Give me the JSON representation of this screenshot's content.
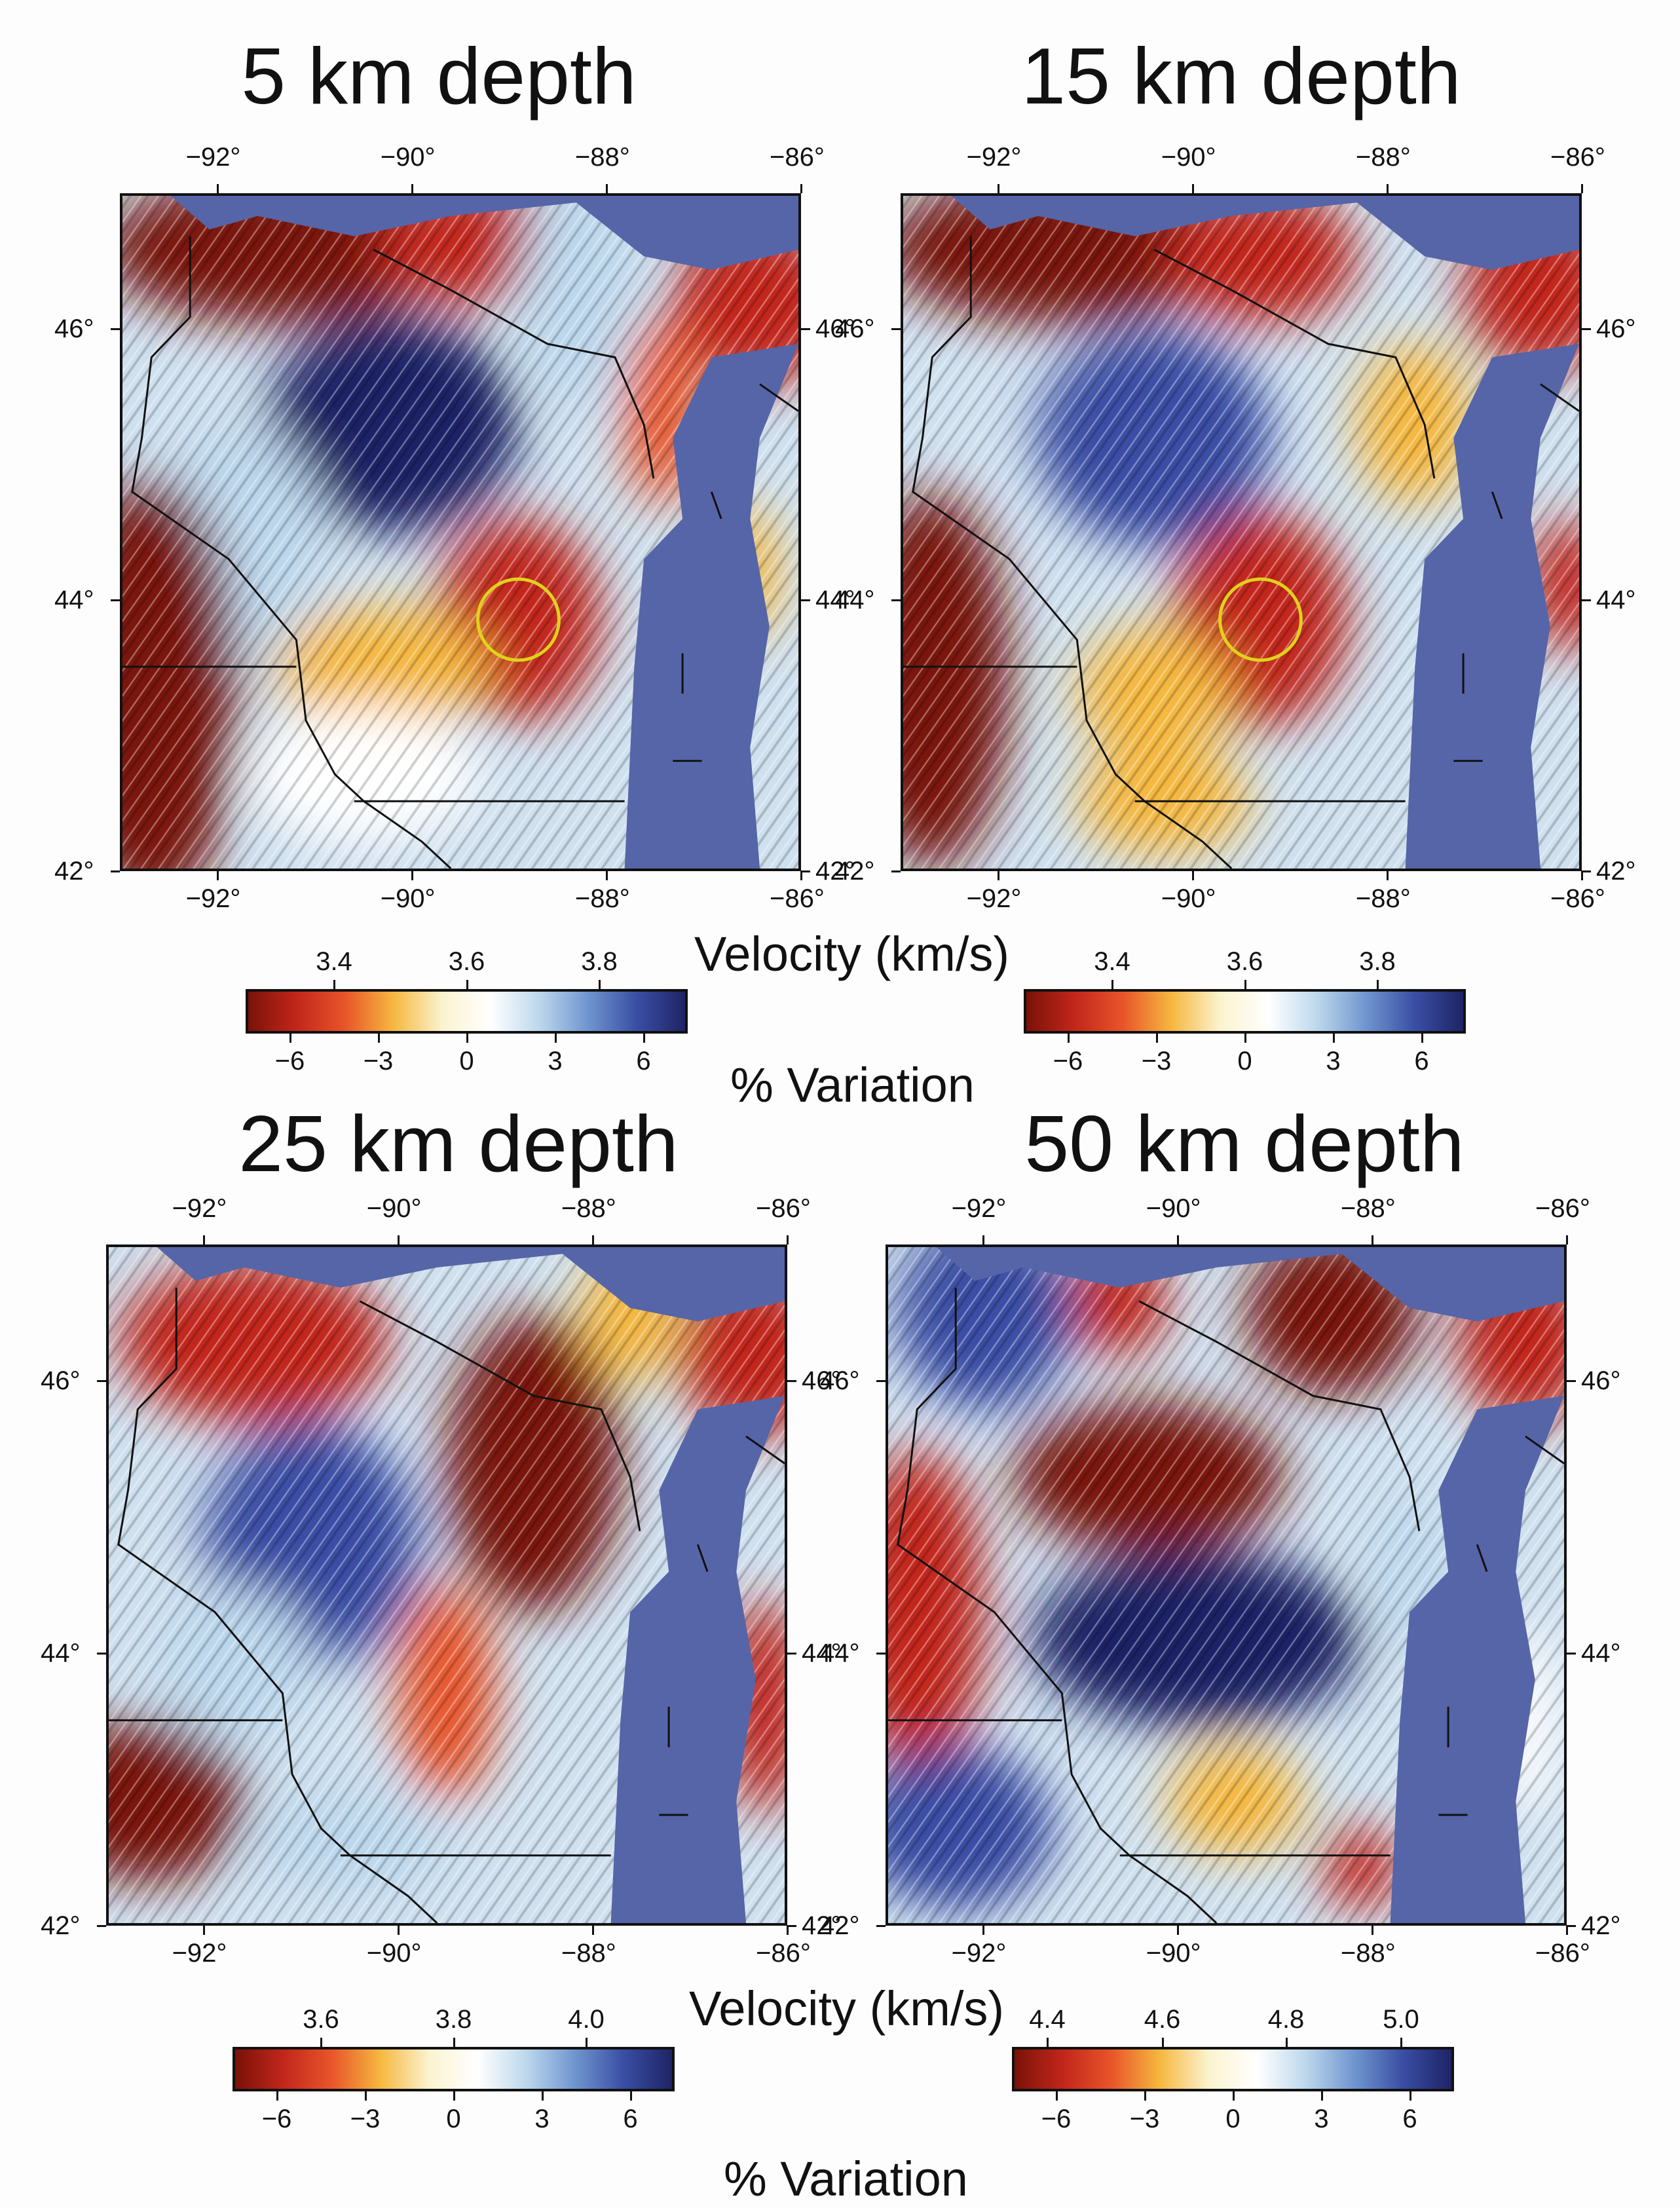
{
  "panels": [
    {
      "id": "p5",
      "title": "5 km depth",
      "hotspot": {
        "lon": -88.9,
        "lat": 43.85,
        "r": 0.42
      },
      "circle": true,
      "blobs": [
        {
          "lon": -91.4,
          "lat": 46.6,
          "rx": 1.8,
          "ry": 0.55,
          "v": -6.5
        },
        {
          "lon": -89.4,
          "lat": 46.65,
          "rx": 1.0,
          "ry": 0.45,
          "v": -5
        },
        {
          "lon": -88.3,
          "lat": 46.3,
          "rx": 0.6,
          "ry": 0.9,
          "v": 3
        },
        {
          "lon": -86.4,
          "lat": 46.2,
          "rx": 0.9,
          "ry": 0.6,
          "v": -6
        },
        {
          "lon": -87.4,
          "lat": 45.4,
          "rx": 0.4,
          "ry": 0.7,
          "v": -4
        },
        {
          "lon": -90.2,
          "lat": 45.3,
          "rx": 1.3,
          "ry": 0.8,
          "v": 6.5
        },
        {
          "lon": -91.8,
          "lat": 44.4,
          "rx": 0.9,
          "ry": 0.9,
          "v": 2
        },
        {
          "lon": -92.7,
          "lat": 43.3,
          "rx": 0.9,
          "ry": 1.6,
          "v": -6.5
        },
        {
          "lon": -88.9,
          "lat": 43.85,
          "rx": 0.85,
          "ry": 0.75,
          "v": -6
        },
        {
          "lon": -90.3,
          "lat": 43.5,
          "rx": 1.1,
          "ry": 0.45,
          "v": -2
        },
        {
          "lon": -90.5,
          "lat": 42.7,
          "rx": 1.2,
          "ry": 0.5,
          "v": 1
        },
        {
          "lon": -86.5,
          "lat": 44.2,
          "rx": 0.3,
          "ry": 0.5,
          "v": -3
        }
      ]
    },
    {
      "id": "p15",
      "title": "15 km depth",
      "hotspot": {
        "lon": -89.3,
        "lat": 43.85,
        "r": 0.42
      },
      "circle": true,
      "blobs": [
        {
          "lon": -91.4,
          "lat": 46.6,
          "rx": 1.8,
          "ry": 0.55,
          "v": -6.5
        },
        {
          "lon": -89.3,
          "lat": 46.55,
          "rx": 1.0,
          "ry": 0.5,
          "v": -5
        },
        {
          "lon": -86.4,
          "lat": 46.3,
          "rx": 0.8,
          "ry": 0.6,
          "v": -6
        },
        {
          "lon": -87.7,
          "lat": 45.3,
          "rx": 0.6,
          "ry": 0.6,
          "v": -3
        },
        {
          "lon": -90.4,
          "lat": 45.2,
          "rx": 1.2,
          "ry": 0.8,
          "v": 5.5
        },
        {
          "lon": -92.7,
          "lat": 43.4,
          "rx": 0.8,
          "ry": 1.4,
          "v": -6.5
        },
        {
          "lon": -89.3,
          "lat": 43.85,
          "rx": 0.9,
          "ry": 0.8,
          "v": -6
        },
        {
          "lon": -90.4,
          "lat": 43.3,
          "rx": 0.8,
          "ry": 0.5,
          "v": -2.5
        },
        {
          "lon": -86.1,
          "lat": 44.1,
          "rx": 0.4,
          "ry": 0.5,
          "v": -6
        },
        {
          "lon": -90.3,
          "lat": 42.5,
          "rx": 0.9,
          "ry": 0.4,
          "v": -2
        }
      ]
    },
    {
      "id": "p25",
      "title": "25 km depth",
      "hotspot": null,
      "circle": false,
      "blobs": [
        {
          "lon": -91.5,
          "lat": 46.3,
          "rx": 1.4,
          "ry": 0.6,
          "v": -6
        },
        {
          "lon": -88.6,
          "lat": 45.4,
          "rx": 0.9,
          "ry": 1.1,
          "v": -6.5
        },
        {
          "lon": -87.6,
          "lat": 46.5,
          "rx": 0.5,
          "ry": 0.5,
          "v": -3
        },
        {
          "lon": -86.3,
          "lat": 46.2,
          "rx": 0.8,
          "ry": 0.6,
          "v": -5
        },
        {
          "lon": -90.9,
          "lat": 44.8,
          "rx": 1.1,
          "ry": 0.9,
          "v": 5
        },
        {
          "lon": -89.5,
          "lat": 43.7,
          "rx": 0.5,
          "ry": 0.8,
          "v": -4
        },
        {
          "lon": -92.6,
          "lat": 42.9,
          "rx": 1.0,
          "ry": 0.6,
          "v": -6.5
        },
        {
          "lon": -86.2,
          "lat": 43.6,
          "rx": 0.4,
          "ry": 0.8,
          "v": -6
        },
        {
          "lon": -91.7,
          "lat": 43.9,
          "rx": 0.8,
          "ry": 0.6,
          "v": 2
        },
        {
          "lon": -90.5,
          "lat": 42.6,
          "rx": 1.0,
          "ry": 0.4,
          "v": 2
        }
      ]
    },
    {
      "id": "p50",
      "title": "50 km depth",
      "hotspot": null,
      "circle": false,
      "blobs": [
        {
          "lon": -92.0,
          "lat": 46.5,
          "rx": 0.9,
          "ry": 0.7,
          "v": 5
        },
        {
          "lon": -90.6,
          "lat": 46.6,
          "rx": 0.5,
          "ry": 0.4,
          "v": -5
        },
        {
          "lon": -88.4,
          "lat": 46.5,
          "rx": 0.9,
          "ry": 0.6,
          "v": -6.5
        },
        {
          "lon": -86.4,
          "lat": 46.3,
          "rx": 0.7,
          "ry": 0.6,
          "v": -6
        },
        {
          "lon": -90.3,
          "lat": 45.3,
          "rx": 1.4,
          "ry": 0.55,
          "v": -6.5
        },
        {
          "lon": -92.7,
          "lat": 44.3,
          "rx": 0.7,
          "ry": 1.2,
          "v": -6
        },
        {
          "lon": -89.8,
          "lat": 44.1,
          "rx": 1.7,
          "ry": 0.65,
          "v": 6.5
        },
        {
          "lon": -92.3,
          "lat": 42.7,
          "rx": 1.0,
          "ry": 0.6,
          "v": 5
        },
        {
          "lon": -89.4,
          "lat": 42.9,
          "rx": 0.7,
          "ry": 0.4,
          "v": -3
        },
        {
          "lon": -88.1,
          "lat": 42.4,
          "rx": 0.4,
          "ry": 0.3,
          "v": -6
        },
        {
          "lon": -87.6,
          "lat": 44.6,
          "rx": 0.4,
          "ry": 0.6,
          "v": 2
        },
        {
          "lon": -86.4,
          "lat": 43.5,
          "rx": 0.3,
          "ry": 0.7,
          "v": 1
        }
      ]
    }
  ],
  "lon_ticks": [
    "−92°",
    "−90°",
    "−88°",
    "−86°"
  ],
  "lat_ticks": [
    "46°",
    "44°",
    "42°"
  ],
  "velocity_label": "Velocity (km/s)",
  "variation_label": "% Variation",
  "colorbars": [
    {
      "id": "cb5",
      "velocity_ticks": [
        "3.4",
        "3.6",
        "3.8"
      ],
      "variation_ticks": [
        "−6",
        "−3",
        "0",
        "3",
        "6"
      ]
    },
    {
      "id": "cb15",
      "velocity_ticks": [
        "3.4",
        "3.6",
        "3.8"
      ],
      "variation_ticks": [
        "−6",
        "−3",
        "0",
        "3",
        "6"
      ]
    },
    {
      "id": "cb25",
      "velocity_ticks": [
        "3.6",
        "3.8",
        "4.0"
      ],
      "variation_ticks": [
        "−6",
        "−3",
        "0",
        "3",
        "6"
      ]
    },
    {
      "id": "cb50",
      "velocity_ticks": [
        "4.4",
        "4.6",
        "4.8",
        "5.0"
      ],
      "variation_ticks": [
        "−6",
        "−3",
        "0",
        "3",
        "6"
      ]
    }
  ],
  "colors": {
    "lake": "#5565a8",
    "scale": [
      "#7a1208",
      "#c2261b",
      "#e8552a",
      "#f5b840",
      "#fbf3cf",
      "#ffffff",
      "#bcd7ec",
      "#6f95cf",
      "#3a4ea4",
      "#1e2466"
    ]
  }
}
